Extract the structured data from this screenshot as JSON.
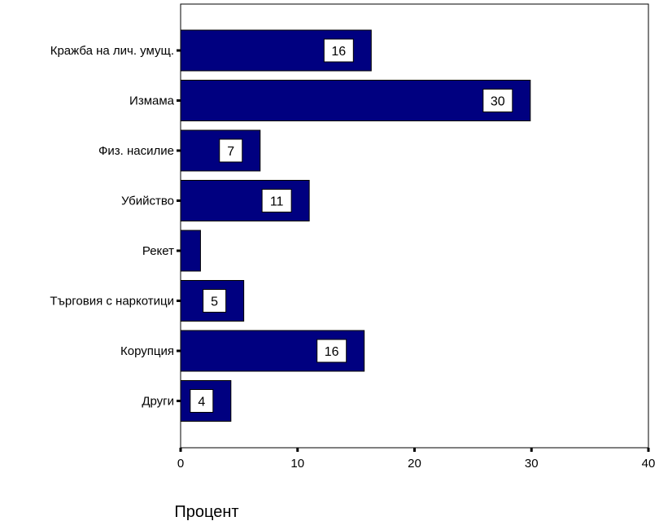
{
  "chart_data": {
    "type": "bar",
    "orientation": "horizontal",
    "categories": [
      "Кражба на лич. умущ.",
      "Измама",
      "Физ. насилие",
      "Убийство",
      "Рекет",
      "Търговия с наркотици",
      "Корупция",
      "Други"
    ],
    "values": [
      16.3,
      29.9,
      6.8,
      11.0,
      1.7,
      5.4,
      15.7,
      4.3
    ],
    "data_labels": [
      "16",
      "30",
      "7",
      "11",
      "",
      "5",
      "16",
      "4"
    ],
    "xlabel": "Процент",
    "xlim": [
      0,
      40
    ],
    "xticks": [
      0,
      10,
      20,
      30,
      40
    ],
    "xtick_labels": [
      "0",
      "10",
      "20",
      "30",
      "40"
    ],
    "bar_color": "#000080",
    "grid": false,
    "legend": "none"
  }
}
